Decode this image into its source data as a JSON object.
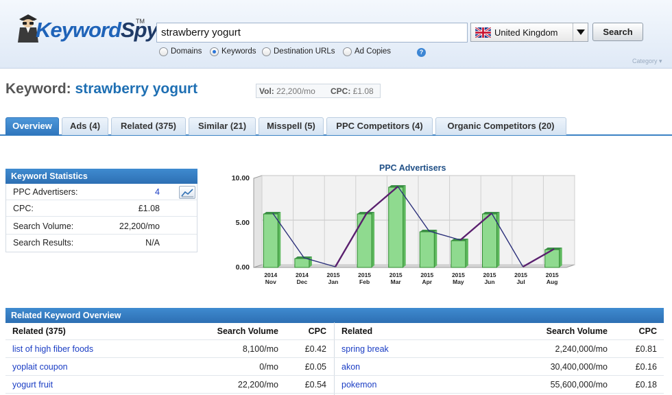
{
  "logo": {
    "part1": "Keyword",
    "part2": "Spy",
    "tm": "TM"
  },
  "search": {
    "query": "strawberry yogurt",
    "button_label": "Search"
  },
  "country": {
    "name": "United Kingdom",
    "flag_icon": "uk-flag-icon"
  },
  "search_types": [
    {
      "label": "Domains",
      "selected": false
    },
    {
      "label": "Keywords",
      "selected": true
    },
    {
      "label": "Destination URLs",
      "selected": false
    },
    {
      "label": "Ad Copies",
      "selected": false
    }
  ],
  "help_label": "?",
  "category_label": "Category ▾",
  "keyword": {
    "prefix": "Keyword:",
    "term": "strawberry yogurt",
    "vol_label": "Vol:",
    "vol": "22,200/mo",
    "cpc_label": "CPC:",
    "cpc": "£1.08"
  },
  "tabs": [
    {
      "label": "Overview",
      "active": true
    },
    {
      "label": "Ads (4)"
    },
    {
      "label": "Related (375)"
    },
    {
      "label": "Similar (21)"
    },
    {
      "label": "Misspell (5)"
    },
    {
      "label": "PPC Competitors (4)"
    },
    {
      "label": "Organic Competitors (20)"
    }
  ],
  "keyword_statistics": {
    "title": "Keyword Statistics",
    "rows": [
      {
        "label": "PPC Advertisers:",
        "value": "4"
      },
      {
        "label": "CPC:",
        "value": "£1.08"
      },
      {
        "label": "Search Volume:",
        "value": "22,200/mo"
      },
      {
        "label": "Search Results:",
        "value": "N/A"
      }
    ]
  },
  "chart_data": {
    "type": "bar",
    "title": "PPC Advertisers",
    "categories": [
      "2014 Nov",
      "2014 Dec",
      "2015 Jan",
      "2015 Feb",
      "2015 Mar",
      "2015 Apr",
      "2015 May",
      "2015 Jun",
      "2015 Jul",
      "2015 Aug"
    ],
    "category_lines": [
      [
        "2014",
        "Nov"
      ],
      [
        "2014",
        "Dec"
      ],
      [
        "2015",
        "Jan"
      ],
      [
        "2015",
        "Feb"
      ],
      [
        "2015",
        "Mar"
      ],
      [
        "2015",
        "Apr"
      ],
      [
        "2015",
        "May"
      ],
      [
        "2015",
        "Jun"
      ],
      [
        "2015",
        "Jul"
      ],
      [
        "2015",
        "Aug"
      ]
    ],
    "values": [
      6,
      1,
      0,
      6,
      9,
      4,
      3,
      6,
      0,
      2
    ],
    "ylim": [
      0,
      10
    ],
    "yticks": [
      "0.00",
      "5.00",
      "10.00"
    ],
    "colors": {
      "bar": "#8fda8f",
      "bar_edge": "#2f8a2f",
      "line_up": "#5a1f6e",
      "line_down": "#2b2f7a"
    },
    "grid": true
  },
  "related_overview": {
    "title": "Related Keyword Overview",
    "headers": [
      "Related (375)",
      "Search Volume",
      "CPC",
      "Related",
      "Search Volume",
      "CPC"
    ],
    "rows": [
      [
        "list of high fiber foods",
        "8,100/mo",
        "£0.42",
        "spring break",
        "2,240,000/mo",
        "£0.81"
      ],
      [
        "yoplait coupon",
        "0/mo",
        "£0.05",
        "akon",
        "30,400,000/mo",
        "£0.16"
      ],
      [
        "yogurt fruit",
        "22,200/mo",
        "£0.54",
        "pokemon",
        "55,600,000/mo",
        "£0.18"
      ]
    ]
  }
}
